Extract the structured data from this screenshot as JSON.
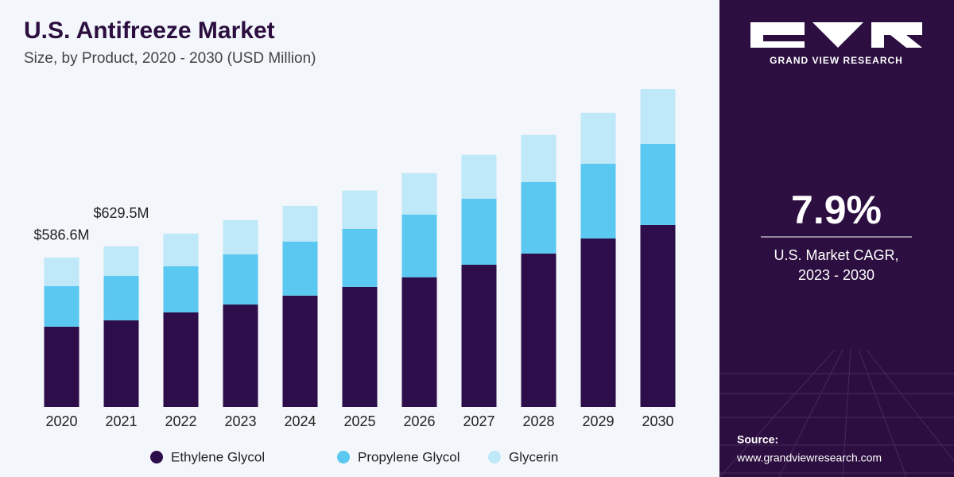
{
  "chart_data": {
    "type": "bar",
    "stacked": true,
    "title": "U.S. Antifreeze Market",
    "subtitle": "Size, by Product, 2020 - 2030 (USD Million)",
    "categories": [
      "2020",
      "2021",
      "2022",
      "2023",
      "2024",
      "2025",
      "2026",
      "2027",
      "2028",
      "2029",
      "2030"
    ],
    "series": [
      {
        "name": "Ethylene Glycol",
        "color": "#2e0e4a",
        "values": [
          315,
          340,
          371,
          402,
          437,
          471,
          509,
          558,
          602,
          661,
          714
        ]
      },
      {
        "name": "Propylene Glycol",
        "color": "#5bc8f2",
        "values": [
          159,
          175,
          181,
          197,
          212,
          228,
          246,
          259,
          281,
          293,
          318
        ]
      },
      {
        "name": "Glycerin",
        "color": "#bfe8f8",
        "values": [
          112,
          115,
          128,
          134,
          140,
          150,
          162,
          172,
          184,
          200,
          215
        ]
      }
    ],
    "annotations": [
      {
        "x": "2020",
        "value": 586.6,
        "label": "$586.6M"
      },
      {
        "x": "2021",
        "value": 629.5,
        "label": "$629.5M"
      }
    ]
  },
  "side_panel": {
    "brand": "GRAND VIEW RESEARCH",
    "cagr": "7.9%",
    "cagr_label": [
      "U.S. Market CAGR,",
      "2023 - 2030"
    ],
    "source_label": "Source:",
    "source_url": "www.grandviewresearch.com"
  }
}
